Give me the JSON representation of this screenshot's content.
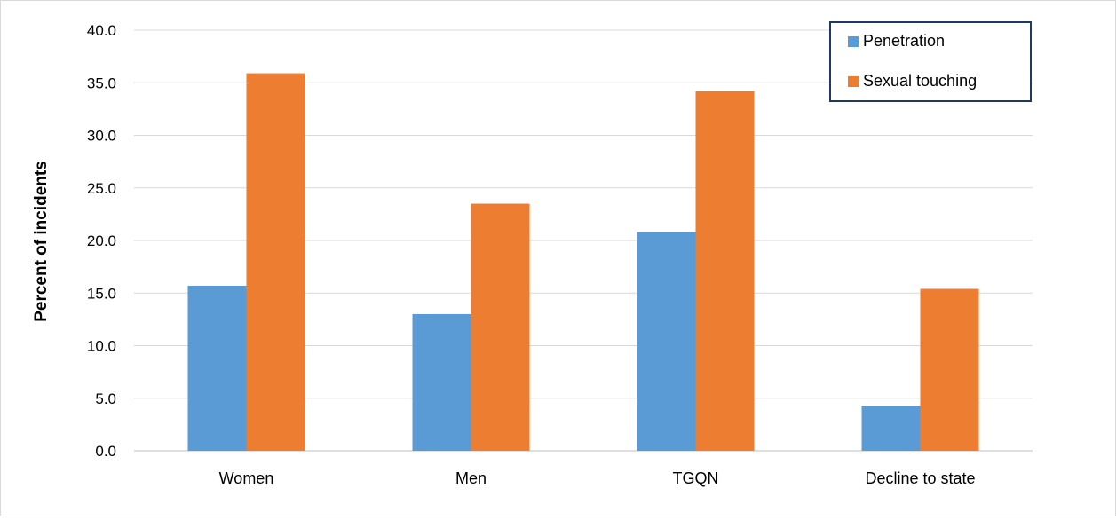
{
  "chart_data": {
    "type": "bar",
    "title": "",
    "xlabel": "",
    "ylabel": "Percent of incidents",
    "categories": [
      "Women",
      "Men",
      "TGQN",
      "Decline to state"
    ],
    "series": [
      {
        "name": "Penetration",
        "color": "#5b9bd5",
        "values": [
          15.7,
          13.0,
          20.8,
          4.3
        ]
      },
      {
        "name": "Sexual touching",
        "color": "#ed7d31",
        "values": [
          35.9,
          23.5,
          34.2,
          15.4
        ]
      }
    ],
    "ylim": [
      0,
      40
    ],
    "yticks": [
      "0.0",
      "5.0",
      "10.0",
      "15.0",
      "20.0",
      "25.0",
      "30.0",
      "35.0",
      "40.0"
    ],
    "grid": true,
    "legend_position": "top-right"
  }
}
